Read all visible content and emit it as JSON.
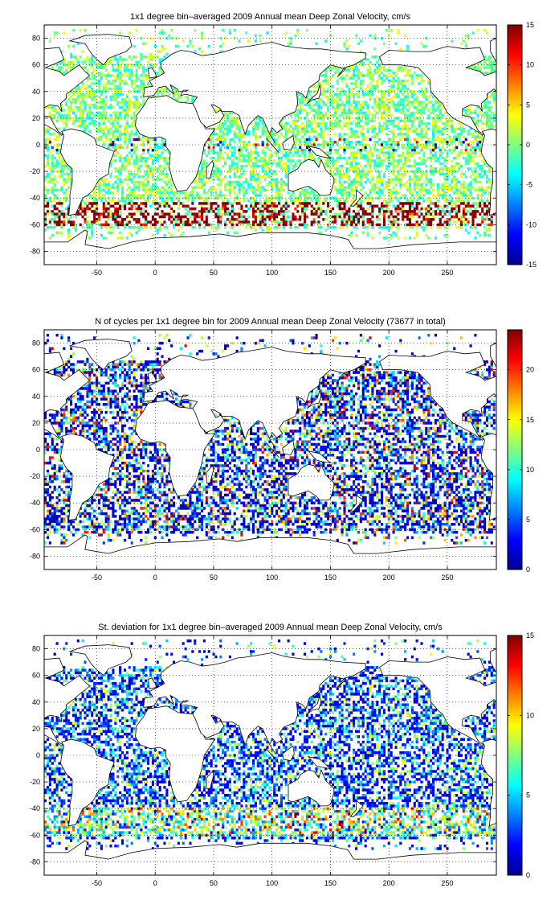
{
  "chart_data": [
    {
      "type": "heatmap",
      "title": "1x1 degree bin–averaged 2009 Annual mean Deep Zonal Velocity, cm/s",
      "xlabel": "",
      "ylabel": "",
      "xlim": [
        -95,
        292
      ],
      "ylim": [
        -90,
        90
      ],
      "xticks": [
        -50,
        0,
        50,
        100,
        150,
        200,
        250
      ],
      "yticks": [
        80,
        60,
        40,
        20,
        0,
        -20,
        -40,
        -60,
        -80
      ],
      "colorbar": {
        "min": -15,
        "max": 15,
        "ticks": [
          15,
          10,
          5,
          0,
          -5,
          -10,
          -15
        ],
        "colormap": "jet"
      },
      "grid": true,
      "dominant_features": "Strong positive (eastward, 10-15 cm/s) band along the Antarctic Circumpolar Current near 45-60S; values near 0 elsewhere"
    },
    {
      "type": "heatmap",
      "title": "N of cycles per 1x1 degree bin for 2009 Annual mean Deep Zonal Velocity (73677 in total)",
      "xlabel": "",
      "ylabel": "",
      "xlim": [
        -95,
        292
      ],
      "ylim": [
        -90,
        90
      ],
      "xticks": [
        -50,
        0,
        50,
        100,
        150,
        200,
        250
      ],
      "yticks": [
        80,
        60,
        40,
        20,
        0,
        -20,
        -40,
        -60,
        -80
      ],
      "colorbar": {
        "min": 0,
        "max": 24,
        "ticks": [
          20,
          15,
          10,
          5,
          0
        ],
        "colormap": "jet"
      },
      "grid": true,
      "total_cycles": 73677
    },
    {
      "type": "heatmap",
      "title": "St. deviation for 1x1 degree bin–averaged 2009 Annual mean Deep Zonal Velocity, cm/s",
      "xlabel": "",
      "ylabel": "",
      "xlim": [
        -95,
        292
      ],
      "ylim": [
        -90,
        90
      ],
      "xticks": [
        -50,
        0,
        50,
        100,
        150,
        200,
        250
      ],
      "yticks": [
        80,
        60,
        40,
        20,
        0,
        -20,
        -40,
        -60,
        -80
      ],
      "colorbar": {
        "min": 0,
        "max": 15,
        "ticks": [
          15,
          10,
          5,
          0
        ],
        "colormap": "jet"
      },
      "grid": true
    }
  ],
  "colors": {
    "land": "#ffffff",
    "coastline": "#000000",
    "grid": "#000000"
  }
}
